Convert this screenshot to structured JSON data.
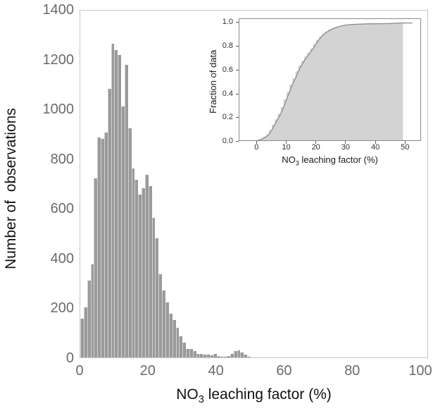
{
  "chart_data": [
    {
      "id": "main-histogram",
      "type": "bar",
      "subtype": "histogram",
      "title": "",
      "xlabel": "NO₃ leaching factor (%)",
      "ylabel": "Number of  observations",
      "bin_start": 0,
      "bin_width": 1,
      "values": [
        155,
        200,
        310,
        375,
        720,
        885,
        880,
        905,
        1080,
        1260,
        1235,
        1215,
        1010,
        1175,
        920,
        760,
        715,
        655,
        680,
        735,
        690,
        560,
        480,
        335,
        270,
        220,
        175,
        150,
        120,
        85,
        60,
        35,
        35,
        25,
        15,
        14,
        12,
        12,
        8,
        13,
        5,
        4,
        3,
        5,
        15,
        25,
        28,
        20,
        10,
        4
      ],
      "xticks": [
        0,
        20,
        40,
        60,
        80,
        100
      ],
      "yticks": [
        0,
        200,
        400,
        600,
        800,
        1000,
        1200,
        1400
      ],
      "xlim": [
        0,
        102.3
      ],
      "ylim": [
        0,
        1400
      ],
      "grid": false,
      "bar_color": "#9a9a9a",
      "spine_color": "#c7c7c7"
    },
    {
      "id": "inset-cdf",
      "type": "area",
      "subtype": "cumulative-distribution of main histogram",
      "title": "",
      "xlabel": "NO₃ leaching factor (%)",
      "ylabel": "Fraction of data",
      "xticks": [
        0,
        10,
        20,
        30,
        40,
        50
      ],
      "ytick_labels": [
        "0.0",
        "0.2",
        "0.4",
        "0.6",
        "0.8",
        "1.0"
      ],
      "yticks": [
        0,
        0.2,
        0.4,
        0.6,
        0.8,
        1.0
      ],
      "xlim": [
        -6,
        55.5
      ],
      "ylim": [
        0,
        1.04
      ],
      "grid": false,
      "key_points": [
        {
          "x": 0,
          "y": 0.0
        },
        {
          "x": 5,
          "y": 0.09
        },
        {
          "x": 8,
          "y": 0.23
        },
        {
          "x": 10,
          "y": 0.35
        },
        {
          "x": 13,
          "y": 0.53
        },
        {
          "x": 15,
          "y": 0.64
        },
        {
          "x": 20,
          "y": 0.82
        },
        {
          "x": 25,
          "y": 0.94
        },
        {
          "x": 30,
          "y": 0.98
        },
        {
          "x": 35,
          "y": 0.993
        },
        {
          "x": 40,
          "y": 0.996
        },
        {
          "x": 45,
          "y": 0.998
        },
        {
          "x": 50,
          "y": 1.0
        }
      ],
      "fill_end_x": 49.5,
      "line_end_x": 52.7,
      "fill_color": "#d3d3d3",
      "line_color": "#8a8a8a",
      "spine_color": "#8a8a8a"
    }
  ]
}
